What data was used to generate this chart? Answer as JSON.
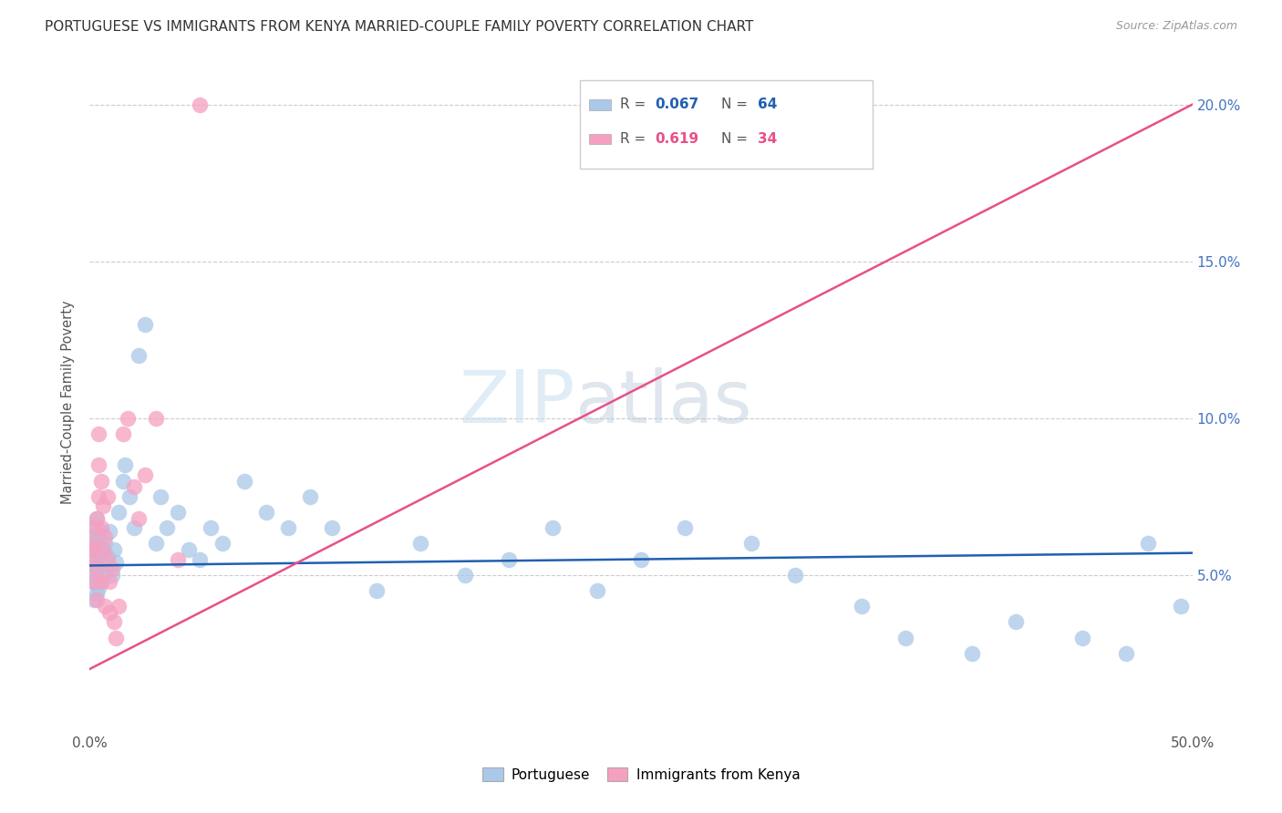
{
  "title": "PORTUGUESE VS IMMIGRANTS FROM KENYA MARRIED-COUPLE FAMILY POVERTY CORRELATION CHART",
  "source": "Source: ZipAtlas.com",
  "ylabel": "Married-Couple Family Poverty",
  "x_min": 0.0,
  "x_max": 0.5,
  "y_min": 0.0,
  "y_max": 0.21,
  "x_ticks": [
    0.0,
    0.1,
    0.2,
    0.3,
    0.4,
    0.5
  ],
  "x_tick_labels": [
    "0.0%",
    "",
    "",
    "",
    "",
    "50.0%"
  ],
  "y_ticks": [
    0.0,
    0.05,
    0.1,
    0.15,
    0.2
  ],
  "y_tick_labels_right": [
    "",
    "5.0%",
    "10.0%",
    "15.0%",
    "20.0%"
  ],
  "portuguese_color": "#aac8e8",
  "kenya_color": "#f5a0c0",
  "portuguese_line_color": "#2060b0",
  "kenya_line_color": "#e8508a",
  "watermark_zip": "ZIP",
  "watermark_atlas": "atlas",
  "portuguese_N": 64,
  "kenya_N": 34,
  "portuguese_R": 0.067,
  "kenya_R": 0.619,
  "portuguese_x": [
    0.001,
    0.001,
    0.001,
    0.002,
    0.002,
    0.002,
    0.002,
    0.003,
    0.003,
    0.003,
    0.003,
    0.004,
    0.004,
    0.004,
    0.005,
    0.005,
    0.005,
    0.006,
    0.006,
    0.007,
    0.007,
    0.008,
    0.009,
    0.01,
    0.011,
    0.012,
    0.013,
    0.015,
    0.016,
    0.018,
    0.02,
    0.022,
    0.025,
    0.03,
    0.032,
    0.035,
    0.04,
    0.045,
    0.05,
    0.055,
    0.06,
    0.07,
    0.08,
    0.09,
    0.1,
    0.11,
    0.13,
    0.15,
    0.17,
    0.19,
    0.21,
    0.23,
    0.25,
    0.27,
    0.3,
    0.32,
    0.35,
    0.37,
    0.4,
    0.42,
    0.45,
    0.47,
    0.48,
    0.495
  ],
  "portuguese_y": [
    0.048,
    0.055,
    0.062,
    0.042,
    0.05,
    0.058,
    0.065,
    0.044,
    0.052,
    0.06,
    0.068,
    0.046,
    0.054,
    0.062,
    0.048,
    0.056,
    0.064,
    0.05,
    0.058,
    0.052,
    0.06,
    0.056,
    0.064,
    0.05,
    0.058,
    0.054,
    0.07,
    0.08,
    0.085,
    0.075,
    0.065,
    0.12,
    0.13,
    0.06,
    0.075,
    0.065,
    0.07,
    0.058,
    0.055,
    0.065,
    0.06,
    0.08,
    0.07,
    0.065,
    0.075,
    0.065,
    0.045,
    0.06,
    0.05,
    0.055,
    0.065,
    0.045,
    0.055,
    0.065,
    0.06,
    0.05,
    0.04,
    0.03,
    0.025,
    0.035,
    0.03,
    0.025,
    0.06,
    0.04
  ],
  "kenya_x": [
    0.001,
    0.001,
    0.002,
    0.002,
    0.002,
    0.003,
    0.003,
    0.003,
    0.004,
    0.004,
    0.004,
    0.005,
    0.005,
    0.005,
    0.006,
    0.006,
    0.007,
    0.007,
    0.008,
    0.008,
    0.009,
    0.009,
    0.01,
    0.011,
    0.012,
    0.013,
    0.015,
    0.017,
    0.02,
    0.022,
    0.025,
    0.03,
    0.04,
    0.05
  ],
  "kenya_y": [
    0.055,
    0.06,
    0.048,
    0.058,
    0.065,
    0.042,
    0.052,
    0.068,
    0.075,
    0.085,
    0.095,
    0.065,
    0.08,
    0.048,
    0.072,
    0.058,
    0.04,
    0.062,
    0.055,
    0.075,
    0.038,
    0.048,
    0.052,
    0.035,
    0.03,
    0.04,
    0.095,
    0.1,
    0.078,
    0.068,
    0.082,
    0.1,
    0.055,
    0.2
  ]
}
